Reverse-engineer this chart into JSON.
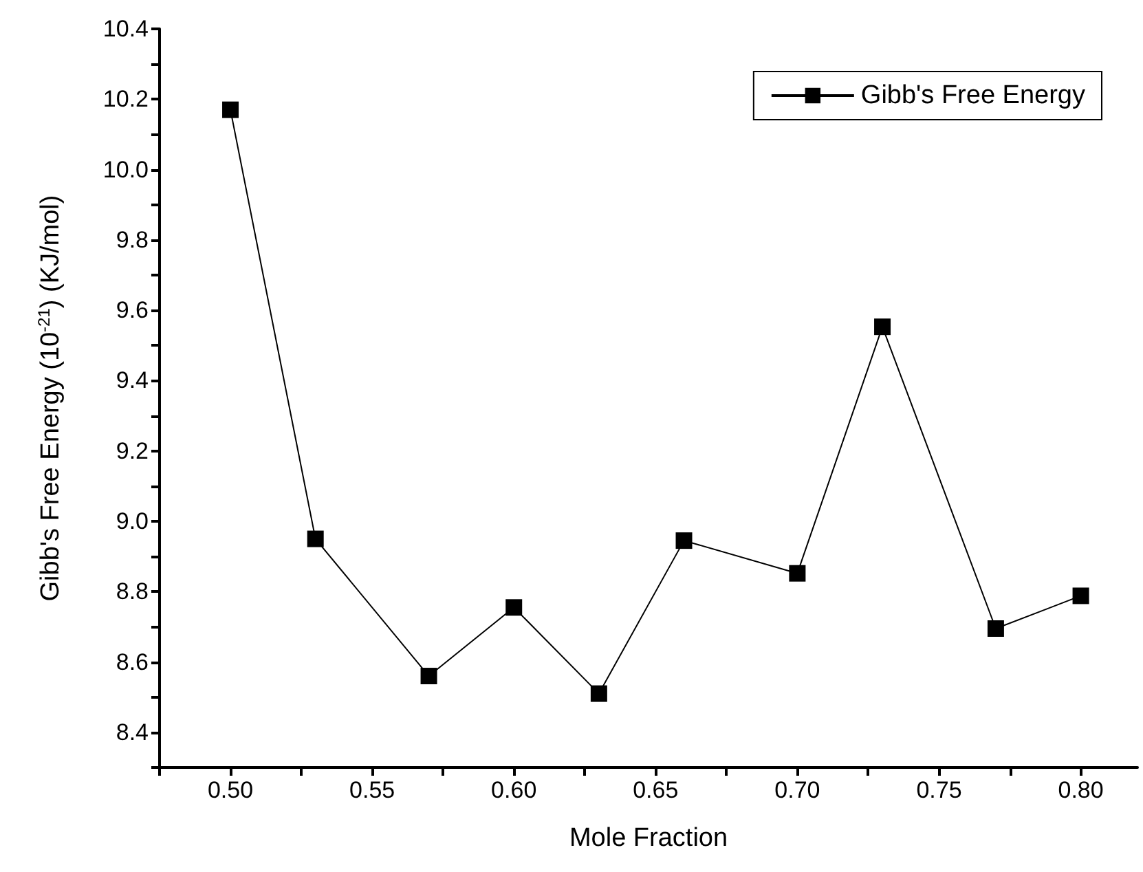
{
  "chart_data": {
    "type": "line",
    "xlabel": "Mole Fraction",
    "ylabel": "Gibb's Free Energy (10$^{-21}$) (KJ/mol)",
    "x": [
      0.5,
      0.53,
      0.57,
      0.6,
      0.63,
      0.66,
      0.7,
      0.73,
      0.77,
      0.8
    ],
    "series": [
      {
        "name": "Gibb's Free Energy",
        "color": "#000000",
        "values": [
          10.17,
          8.95,
          8.56,
          8.755,
          8.51,
          8.945,
          8.852,
          9.553,
          8.695,
          8.788
        ]
      }
    ],
    "xlim": [
      0.475,
      0.82
    ],
    "xticks": [
      {
        "value": 0.475,
        "label": null
      },
      {
        "value": 0.5,
        "label": "0.50"
      },
      {
        "value": 0.525,
        "label": null
      },
      {
        "value": 0.55,
        "label": "0.55"
      },
      {
        "value": 0.575,
        "label": null
      },
      {
        "value": 0.6,
        "label": "0.60"
      },
      {
        "value": 0.625,
        "label": null
      },
      {
        "value": 0.65,
        "label": "0.65"
      },
      {
        "value": 0.675,
        "label": null
      },
      {
        "value": 0.7,
        "label": "0.70"
      },
      {
        "value": 0.725,
        "label": null
      },
      {
        "value": 0.75,
        "label": "0.75"
      },
      {
        "value": 0.775,
        "label": null
      },
      {
        "value": 0.8,
        "label": "0.80"
      }
    ],
    "ylim": [
      8.3,
      10.4
    ],
    "yticks": [
      {
        "value": 8.3,
        "label": null
      },
      {
        "value": 8.4,
        "label": "8.4"
      },
      {
        "value": 8.5,
        "label": null
      },
      {
        "value": 8.6,
        "label": "8.6"
      },
      {
        "value": 8.7,
        "label": null
      },
      {
        "value": 8.8,
        "label": "8.8"
      },
      {
        "value": 8.9,
        "label": null
      },
      {
        "value": 9.0,
        "label": "9.0"
      },
      {
        "value": 9.1,
        "label": null
      },
      {
        "value": 9.2,
        "label": "9.2"
      },
      {
        "value": 9.3,
        "label": null
      },
      {
        "value": 9.4,
        "label": "9.4"
      },
      {
        "value": 9.5,
        "label": null
      },
      {
        "value": 9.6,
        "label": "9.6"
      },
      {
        "value": 9.7,
        "label": null
      },
      {
        "value": 9.8,
        "label": "9.8"
      },
      {
        "value": 9.9,
        "label": null
      },
      {
        "value": 10.0,
        "label": "10.0"
      },
      {
        "value": 10.1,
        "label": null
      },
      {
        "value": 10.2,
        "label": "10.2"
      },
      {
        "value": 10.3,
        "label": null
      },
      {
        "value": 10.4,
        "label": "10.4"
      }
    ],
    "marker": "square",
    "line_style": "solid",
    "legend": "top right",
    "grid": false
  }
}
